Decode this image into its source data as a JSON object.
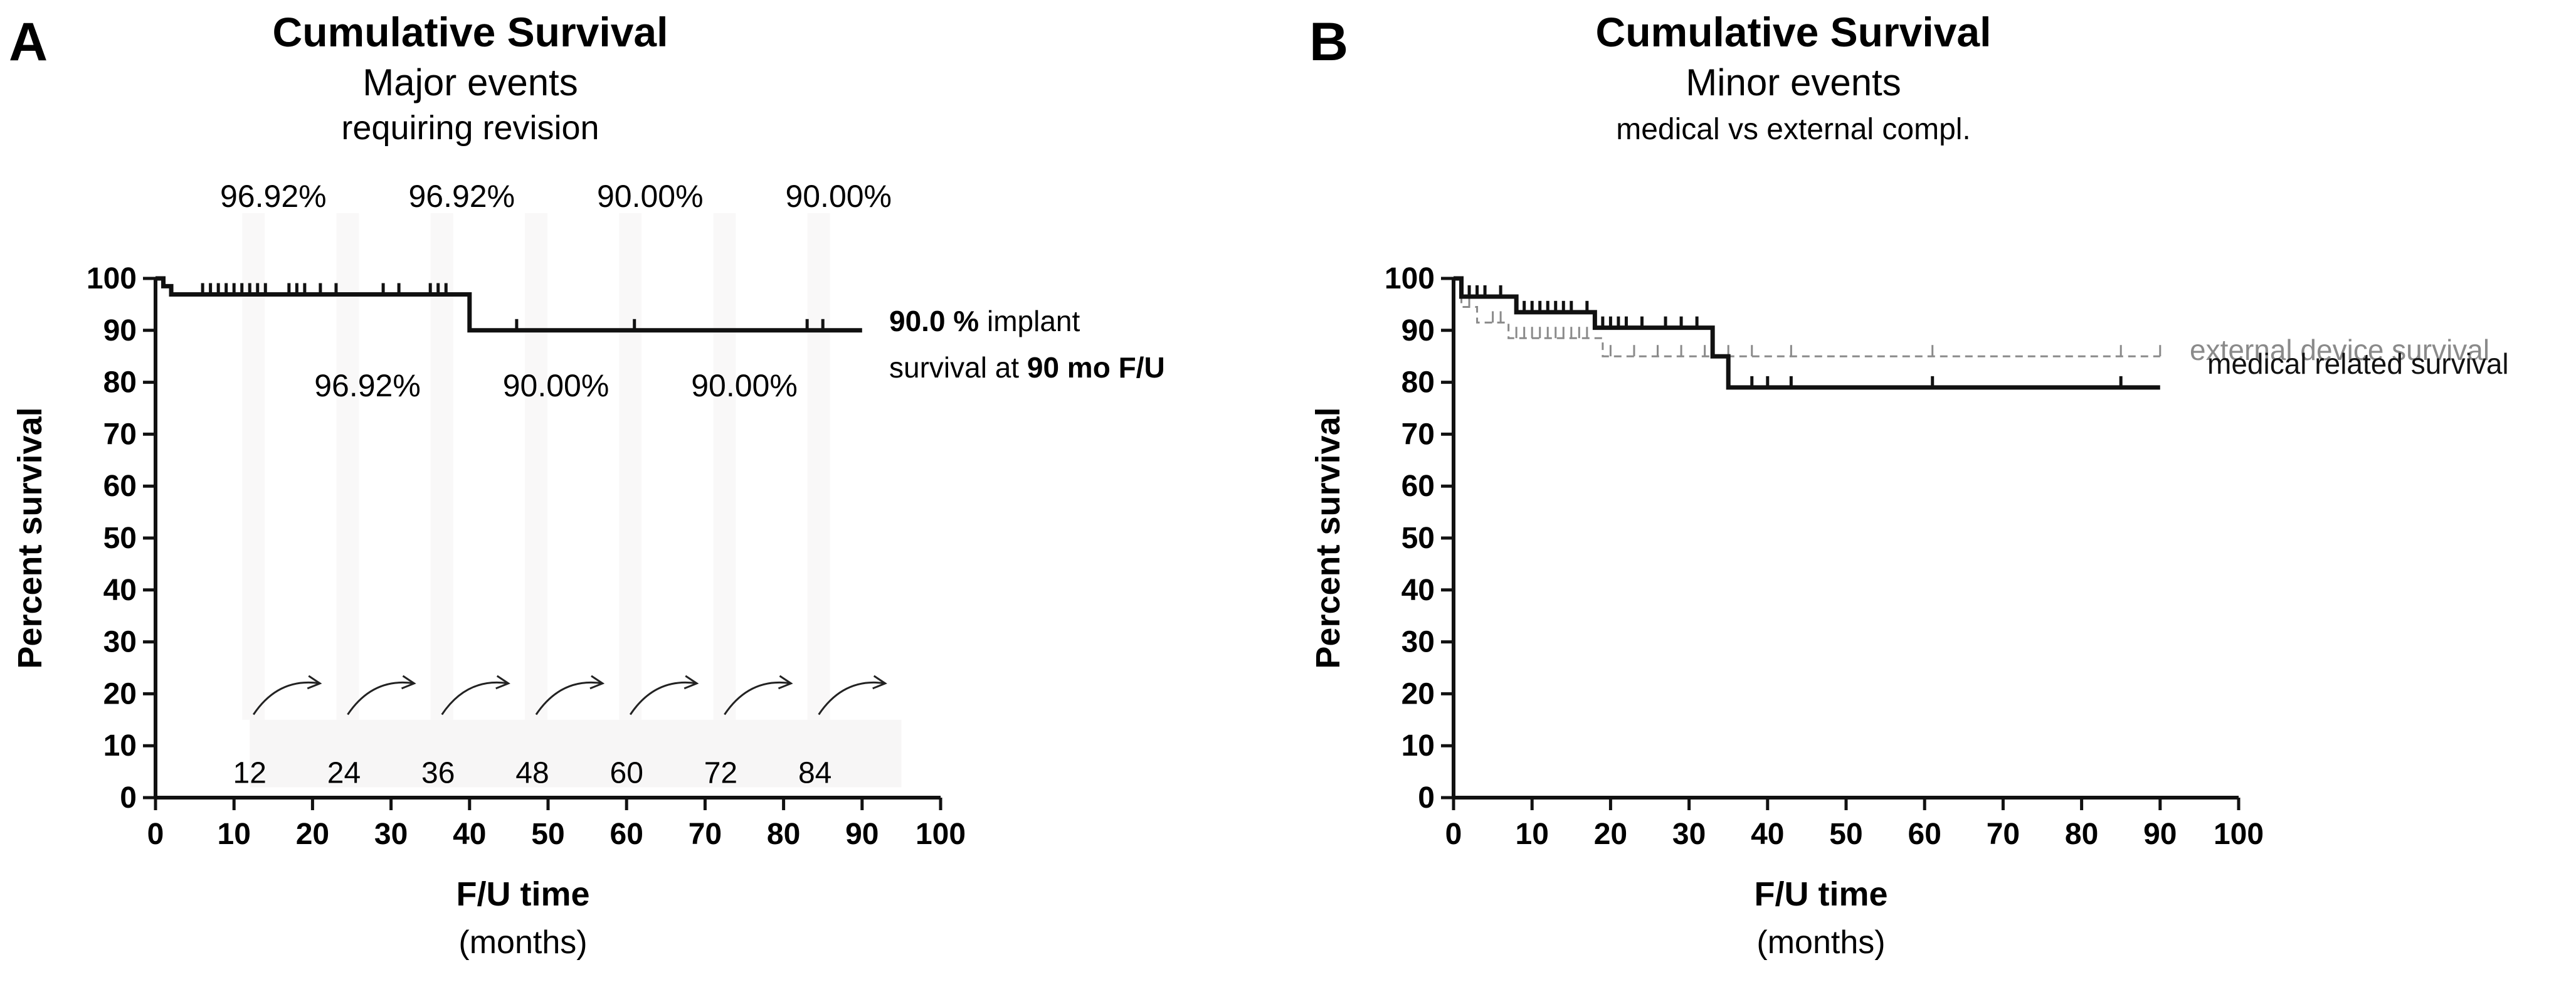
{
  "chart_data": [
    {
      "panel": "A",
      "type": "line",
      "step": true,
      "title": "Cumulative Survival",
      "subtitle": "Major events",
      "subtitle2": "requiring revision",
      "xlabel": "F/U time",
      "xlabel_unit": "(months)",
      "ylabel": "Percent survival",
      "xlim": [
        0,
        100
      ],
      "ylim": [
        0,
        100
      ],
      "xticks": [
        0,
        10,
        20,
        30,
        40,
        50,
        60,
        70,
        80,
        90,
        100
      ],
      "yticks": [
        0,
        10,
        20,
        30,
        40,
        50,
        60,
        70,
        80,
        90,
        100
      ],
      "series": [
        {
          "name": "implant survival",
          "color": "#111111",
          "dashed": false,
          "steps": [
            [
              0,
              100
            ],
            [
              1,
              98.5
            ],
            [
              2,
              96.92
            ],
            [
              40,
              96.92
            ],
            [
              40,
              90.0
            ],
            [
              90,
              90.0
            ]
          ],
          "censored": [
            [
              6,
              96.92
            ],
            [
              7,
              96.92
            ],
            [
              8,
              96.92
            ],
            [
              9,
              96.92
            ],
            [
              10,
              96.92
            ],
            [
              11,
              96.92
            ],
            [
              12,
              96.92
            ],
            [
              13,
              96.92
            ],
            [
              14,
              96.92
            ],
            [
              17,
              96.92
            ],
            [
              18,
              96.92
            ],
            [
              19,
              96.92
            ],
            [
              21,
              96.92
            ],
            [
              23,
              96.92
            ],
            [
              29,
              96.92
            ],
            [
              31,
              96.92
            ],
            [
              35,
              96.92
            ],
            [
              36,
              96.92
            ],
            [
              37,
              96.92
            ],
            [
              46,
              90.0
            ],
            [
              61,
              90.0
            ],
            [
              83,
              90.0
            ],
            [
              85,
              90.0
            ]
          ]
        }
      ],
      "annotations_top": [
        {
          "x": 15,
          "text": "96.92%"
        },
        {
          "x": 39,
          "text": "96.92%"
        },
        {
          "x": 63,
          "text": "90.00%"
        },
        {
          "x": 87,
          "text": "90.00%"
        }
      ],
      "annotations_mid": [
        {
          "x": 27,
          "text": "96.92%"
        },
        {
          "x": 51,
          "text": "90.00%"
        },
        {
          "x": 75,
          "text": "90.00%"
        }
      ],
      "interval_labels": [
        "12",
        "24",
        "36",
        "48",
        "60",
        "72",
        "84"
      ],
      "interval_values": [
        12,
        24,
        36,
        48,
        60,
        72,
        84
      ],
      "note": {
        "bold1": "90.0 %",
        "text1": " implant",
        "text2": "survival at ",
        "bold2": "90 mo F/U"
      }
    },
    {
      "panel": "B",
      "type": "line",
      "step": true,
      "title": "Cumulative Survival",
      "subtitle": "Minor events",
      "subtitle2": "medical vs external compl.",
      "xlabel": "F/U time",
      "xlabel_unit": "(months)",
      "ylabel": "Percent survival",
      "xlim": [
        0,
        100
      ],
      "ylim": [
        0,
        100
      ],
      "xticks": [
        0,
        10,
        20,
        30,
        40,
        50,
        60,
        70,
        80,
        90,
        100
      ],
      "yticks": [
        0,
        10,
        20,
        30,
        40,
        50,
        60,
        70,
        80,
        90,
        100
      ],
      "series": [
        {
          "name": "external device survival",
          "color": "#8a8a8a",
          "dashed": true,
          "steps": [
            [
              0,
              100
            ],
            [
              1,
              94.5
            ],
            [
              3,
              91.5
            ],
            [
              7,
              88.5
            ],
            [
              19,
              88.5
            ],
            [
              19,
              85.0
            ],
            [
              90,
              85.0
            ]
          ],
          "censored": [
            [
              2,
              94.5
            ],
            [
              5,
              91.5
            ],
            [
              6,
              91.5
            ],
            [
              8,
              88.5
            ],
            [
              9,
              88.5
            ],
            [
              10,
              88.5
            ],
            [
              11,
              88.5
            ],
            [
              12,
              88.5
            ],
            [
              13,
              88.5
            ],
            [
              14,
              88.5
            ],
            [
              15,
              88.5
            ],
            [
              16,
              88.5
            ],
            [
              17,
              88.5
            ],
            [
              20,
              85.0
            ],
            [
              23,
              85.0
            ],
            [
              26,
              85.0
            ],
            [
              29,
              85.0
            ],
            [
              32,
              85.0
            ],
            [
              35,
              85.0
            ],
            [
              38,
              85.0
            ],
            [
              43,
              85.0
            ],
            [
              61,
              85.0
            ],
            [
              85,
              85.0
            ],
            [
              90,
              85.0
            ]
          ]
        },
        {
          "name": "medical related survival",
          "color": "#111111",
          "dashed": false,
          "steps": [
            [
              0,
              100
            ],
            [
              1,
              96.5
            ],
            [
              8,
              96.5
            ],
            [
              8,
              93.5
            ],
            [
              18,
              93.5
            ],
            [
              18,
              90.5
            ],
            [
              33,
              90.5
            ],
            [
              33,
              85.0
            ],
            [
              35,
              85.0
            ],
            [
              35,
              79.0
            ],
            [
              90,
              79.0
            ]
          ],
          "censored": [
            [
              2,
              96.5
            ],
            [
              3,
              96.5
            ],
            [
              4,
              96.5
            ],
            [
              6,
              96.5
            ],
            [
              9,
              93.5
            ],
            [
              10,
              93.5
            ],
            [
              11,
              93.5
            ],
            [
              12,
              93.5
            ],
            [
              13,
              93.5
            ],
            [
              14,
              93.5
            ],
            [
              15,
              93.5
            ],
            [
              17,
              93.5
            ],
            [
              19,
              90.5
            ],
            [
              20,
              90.5
            ],
            [
              21,
              90.5
            ],
            [
              22,
              90.5
            ],
            [
              24,
              90.5
            ],
            [
              27,
              90.5
            ],
            [
              29,
              90.5
            ],
            [
              31,
              90.5
            ],
            [
              38,
              79.0
            ],
            [
              40,
              79.0
            ],
            [
              43,
              79.0
            ],
            [
              61,
              79.0
            ],
            [
              85,
              79.0
            ]
          ]
        }
      ]
    }
  ],
  "panel_letters": [
    "A",
    "B"
  ]
}
